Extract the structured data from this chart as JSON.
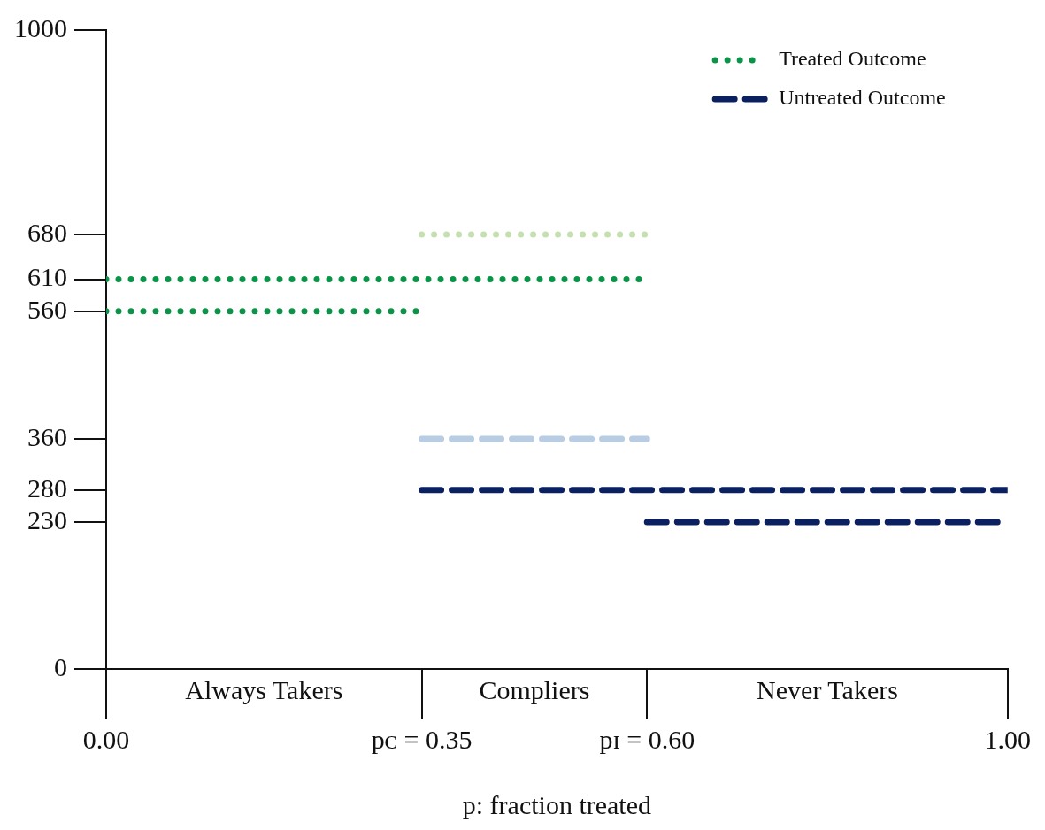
{
  "chart_data": {
    "type": "line",
    "xlabel": "p: fraction treated",
    "xlim": [
      0,
      1
    ],
    "xticks": [
      {
        "value": 0,
        "label": "0.00"
      },
      {
        "value": 0.35,
        "label": "pᴄ = 0.35"
      },
      {
        "value": 0.6,
        "label": "pɪ = 0.60"
      },
      {
        "value": 1,
        "label": "1.00"
      }
    ],
    "ylim": [
      0,
      1000
    ],
    "yticks": [
      0,
      230,
      280,
      360,
      560,
      610,
      680,
      1000
    ],
    "annotations": [
      "Always Takers",
      "Compliers",
      "Never Takers"
    ],
    "legend": "top right",
    "grid": false,
    "marker": "none",
    "series": [
      {
        "name": "Treated Outcome",
        "color": "#0a9447",
        "line_style": "dotted",
        "x": [
          0,
          0.6
        ],
        "values": [
          610,
          610
        ]
      },
      {
        "name": "Untreated Outcome",
        "color": "#0a2060",
        "line_style": "dashed",
        "x": [
          0.35,
          1
        ],
        "values": [
          280,
          280
        ]
      },
      {
        "color": "#0a9447",
        "line_style": "dotted",
        "x": [
          0,
          0.35
        ],
        "values": [
          560,
          560
        ]
      },
      {
        "color": "#c5dfb0",
        "line_style": "dotted",
        "x": [
          0.35,
          0.6
        ],
        "values": [
          680,
          680
        ]
      },
      {
        "color": "#b8cce4",
        "line_style": "dashed",
        "x": [
          0.35,
          0.6
        ],
        "values": [
          360,
          360
        ]
      },
      {
        "color": "#0a2060",
        "line_style": "dashed",
        "x": [
          0.6,
          1
        ],
        "values": [
          230,
          230
        ]
      }
    ]
  }
}
